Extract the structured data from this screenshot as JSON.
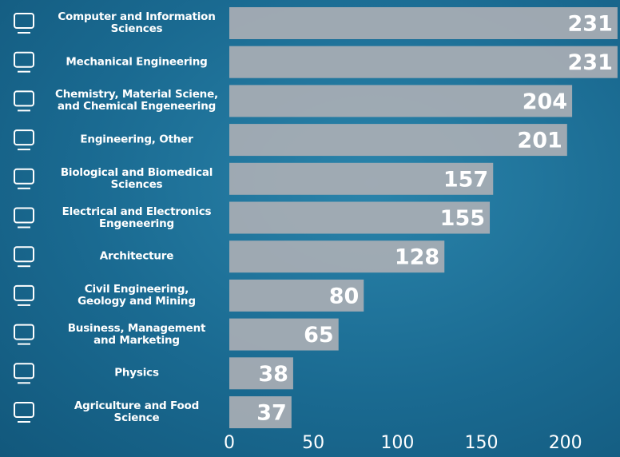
{
  "chart_data": {
    "type": "bar",
    "orientation": "horizontal",
    "categories": [
      "Computer and Information\nSciences",
      "Mechanical Engineering",
      "Chemistry, Material Sciene,\nand Chemical Engeneering",
      "Engineering, Other",
      "Biological and Biomedical\nSciences",
      "Electrical and Electronics\nEngeneering",
      "Architecture",
      "Civil Engineering,\nGeology and Mining",
      "Business, Management\nand Marketing",
      "Physics",
      "Agriculture and Food\nScience"
    ],
    "values": [
      231,
      231,
      204,
      201,
      157,
      155,
      128,
      80,
      65,
      38,
      37
    ],
    "color": "#a9aeb4",
    "xlim": [
      0,
      232
    ],
    "xticks": [
      0,
      50,
      100,
      150,
      200
    ]
  }
}
